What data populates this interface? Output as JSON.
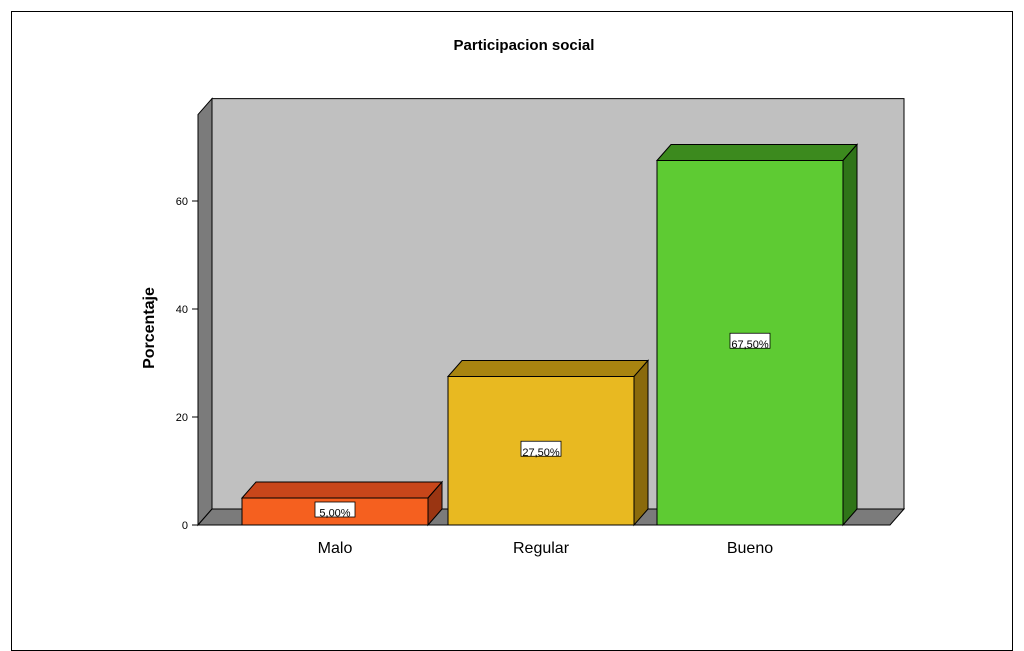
{
  "chart_data": {
    "type": "bar",
    "title": "Participacion social",
    "xlabel": "",
    "ylabel": "Porcentaje",
    "categories": [
      "Malo",
      "Regular",
      "Bueno"
    ],
    "values": [
      5.0,
      27.5,
      67.5
    ],
    "data_labels": [
      "5,00%",
      "27,50%",
      "67,50%"
    ],
    "yticks": [
      "0",
      "20",
      "40",
      "60"
    ],
    "ylim": [
      0,
      76
    ],
    "style": "3d",
    "grid": false,
    "colors": {
      "Malo": {
        "front": "#f5601f",
        "top": "#c8461a",
        "side": "#9a3512"
      },
      "Regular": {
        "front": "#e8b921",
        "top": "#a88410",
        "side": "#8a6a0c"
      },
      "Bueno": {
        "front": "#5ecb33",
        "top": "#3c8a1e",
        "side": "#2f7418"
      },
      "plot_back": "#c0c0c0",
      "plot_wall": "#7b7b7b"
    }
  }
}
